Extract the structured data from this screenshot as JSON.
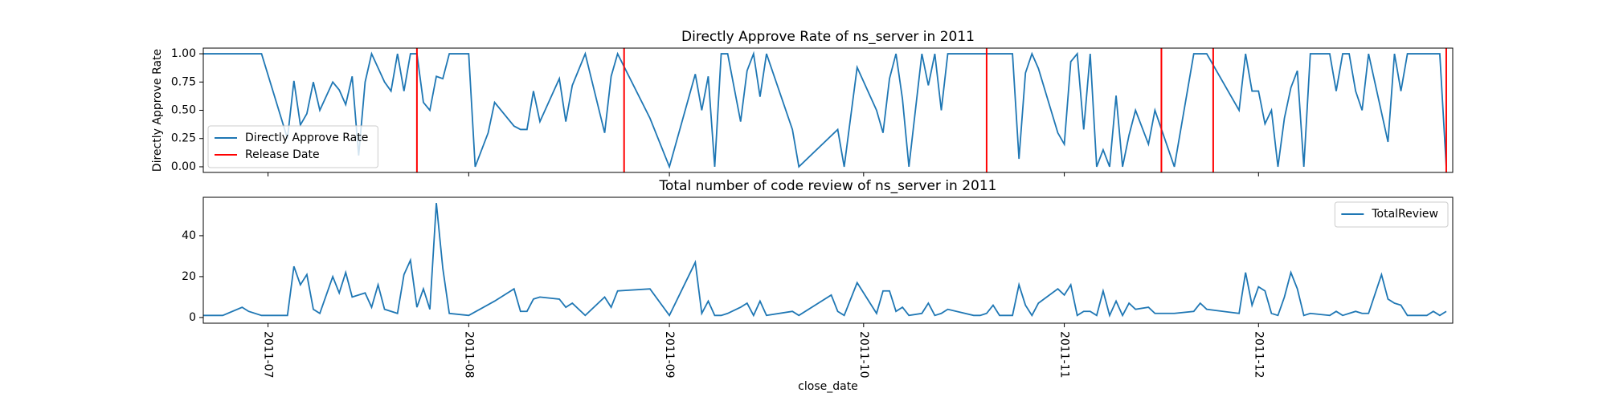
{
  "chart_data": [
    {
      "type": "line",
      "title": "Directly Approve Rate of ns_server in 2011",
      "ylabel": "Directly Approve Rate",
      "x": [
        172,
        181,
        185,
        186,
        187,
        188,
        189,
        190,
        192,
        193,
        194,
        195,
        196,
        197,
        198,
        200,
        201,
        202,
        203,
        204,
        205,
        206,
        207,
        208,
        209,
        210,
        213,
        214,
        216,
        217,
        220,
        221,
        222,
        223,
        224,
        227,
        228,
        229,
        231,
        234,
        235,
        236,
        241,
        244,
        248,
        249,
        250,
        251,
        252,
        253,
        255,
        256,
        257,
        258,
        259,
        263,
        264,
        270,
        271,
        273,
        276,
        277,
        278,
        279,
        280,
        281,
        283,
        284,
        285,
        286,
        287,
        297,
        298,
        299,
        300,
        301,
        304,
        305,
        306,
        307,
        308,
        309,
        310,
        311,
        312,
        313,
        314,
        315,
        316,
        318,
        319,
        322,
        325,
        327,
        332,
        333,
        334,
        335,
        336,
        337,
        338,
        339,
        340,
        341,
        342,
        343,
        346,
        347,
        348,
        349,
        350,
        351,
        352,
        355,
        356,
        357,
        358,
        363,
        364
      ],
      "series": [
        {
          "name": "Directly Approve Rate",
          "color": "#1f77b4",
          "values": [
            1,
            1,
            0.25,
            0.76,
            0.37,
            0.47,
            0.75,
            0.5,
            0.75,
            0.68,
            0.55,
            0.8,
            0.1,
            0.75,
            1,
            0.75,
            0.67,
            1,
            0.67,
            1,
            1,
            0.57,
            0.5,
            0.8,
            0.78,
            1,
            1,
            0,
            0.3,
            0.57,
            0.36,
            0.33,
            0.33,
            0.67,
            0.4,
            0.78,
            0.4,
            0.72,
            1,
            0.3,
            0.8,
            1,
            0.43,
            0,
            0.82,
            0.5,
            0.8,
            0,
            1,
            1,
            0.4,
            0.85,
            1,
            0.62,
            1,
            0.33,
            0,
            0.33,
            0,
            0.88,
            0.5,
            0.3,
            0.78,
            1,
            0.6,
            0,
            1,
            0.72,
            1,
            0.5,
            1,
            1,
            0.07,
            0.83,
            1,
            0.87,
            0.3,
            0.2,
            0.93,
            1,
            0.33,
            1,
            0,
            0.15,
            0,
            0.63,
            0,
            0.28,
            0.5,
            0.2,
            0.5,
            0,
            1,
            1,
            0.5,
            1,
            0.67,
            0.67,
            0.38,
            0.5,
            0,
            0.43,
            0.7,
            0.85,
            0,
            1,
            1,
            0.67,
            1,
            1,
            0.67,
            0.5,
            1,
            0.22,
            1,
            0.67,
            1,
            1,
            0
          ]
        }
      ],
      "vlines": {
        "name": "Release Date",
        "color": "#ff0000",
        "x": [
          205,
          237,
          293,
          320,
          328,
          364
        ]
      },
      "xlim": [
        172,
        365
      ],
      "xticks": [
        182,
        213,
        244,
        274,
        305,
        335
      ],
      "ylim": [
        -0.05,
        1.05
      ],
      "yticks": [
        {
          "value": 0,
          "label": "0.00"
        },
        {
          "value": 0.25,
          "label": "0.25"
        },
        {
          "value": 0.5,
          "label": "0.50"
        },
        {
          "value": 0.75,
          "label": "0.75"
        },
        {
          "value": 1,
          "label": "1.00"
        }
      ],
      "legend": "lower left"
    },
    {
      "type": "line",
      "title": "Total number of code review of ns_server in 2011",
      "xlabel": "close_date",
      "x": [
        172,
        175,
        178,
        179,
        181,
        185,
        186,
        187,
        188,
        189,
        190,
        192,
        193,
        194,
        195,
        197,
        198,
        199,
        200,
        202,
        203,
        204,
        205,
        206,
        207,
        208,
        209,
        210,
        213,
        217,
        220,
        221,
        222,
        223,
        224,
        227,
        228,
        229,
        231,
        234,
        235,
        236,
        241,
        244,
        248,
        249,
        250,
        251,
        252,
        253,
        255,
        256,
        257,
        258,
        259,
        263,
        264,
        269,
        270,
        271,
        273,
        276,
        277,
        278,
        279,
        280,
        281,
        283,
        284,
        285,
        286,
        287,
        291,
        292,
        293,
        294,
        295,
        297,
        298,
        299,
        300,
        301,
        304,
        305,
        306,
        307,
        308,
        309,
        310,
        311,
        312,
        313,
        314,
        315,
        316,
        318,
        319,
        322,
        325,
        326,
        327,
        332,
        333,
        334,
        335,
        336,
        337,
        338,
        339,
        340,
        341,
        342,
        343,
        346,
        347,
        348,
        349,
        350,
        351,
        352,
        354,
        355,
        356,
        357,
        358,
        360,
        361,
        362,
        363,
        364
      ],
      "series": [
        {
          "name": "TotalReview",
          "color": "#1f77b4",
          "values": [
            1,
            1,
            5,
            3,
            1,
            1,
            25,
            16,
            21,
            4,
            2,
            20,
            12,
            22,
            10,
            12,
            5,
            16,
            4,
            2,
            21,
            28,
            5,
            14,
            4,
            56,
            24,
            2,
            1,
            8,
            14,
            3,
            3,
            9,
            10,
            9,
            5,
            7,
            1,
            10,
            5,
            13,
            14,
            1,
            27,
            2,
            8,
            1,
            1,
            2,
            5,
            7,
            1,
            8,
            1,
            3,
            1,
            11,
            3,
            1,
            17,
            2,
            13,
            13,
            3,
            5,
            1,
            2,
            7,
            1,
            2,
            4,
            1,
            1,
            2,
            6,
            1,
            1,
            16,
            6,
            1,
            7,
            14,
            11,
            16,
            1,
            3,
            3,
            1,
            13,
            1,
            8,
            1,
            7,
            4,
            5,
            2,
            2,
            3,
            7,
            4,
            2,
            22,
            6,
            15,
            13,
            2,
            1,
            10,
            22,
            14,
            1,
            2,
            1,
            3,
            1,
            2,
            3,
            2,
            2,
            21,
            9,
            7,
            6,
            1,
            1,
            1,
            3,
            1,
            3
          ]
        }
      ],
      "xlim": [
        172,
        365
      ],
      "xticks": [
        {
          "value": 182,
          "label": "2011-07"
        },
        {
          "value": 213,
          "label": "2011-08"
        },
        {
          "value": 244,
          "label": "2011-09"
        },
        {
          "value": 274,
          "label": "2011-10"
        },
        {
          "value": 305,
          "label": "2011-11"
        },
        {
          "value": 335,
          "label": "2011-12"
        }
      ],
      "ylim": [
        -2.8,
        58.8
      ],
      "yticks": [
        0,
        20,
        40
      ],
      "legend": "upper right"
    }
  ]
}
